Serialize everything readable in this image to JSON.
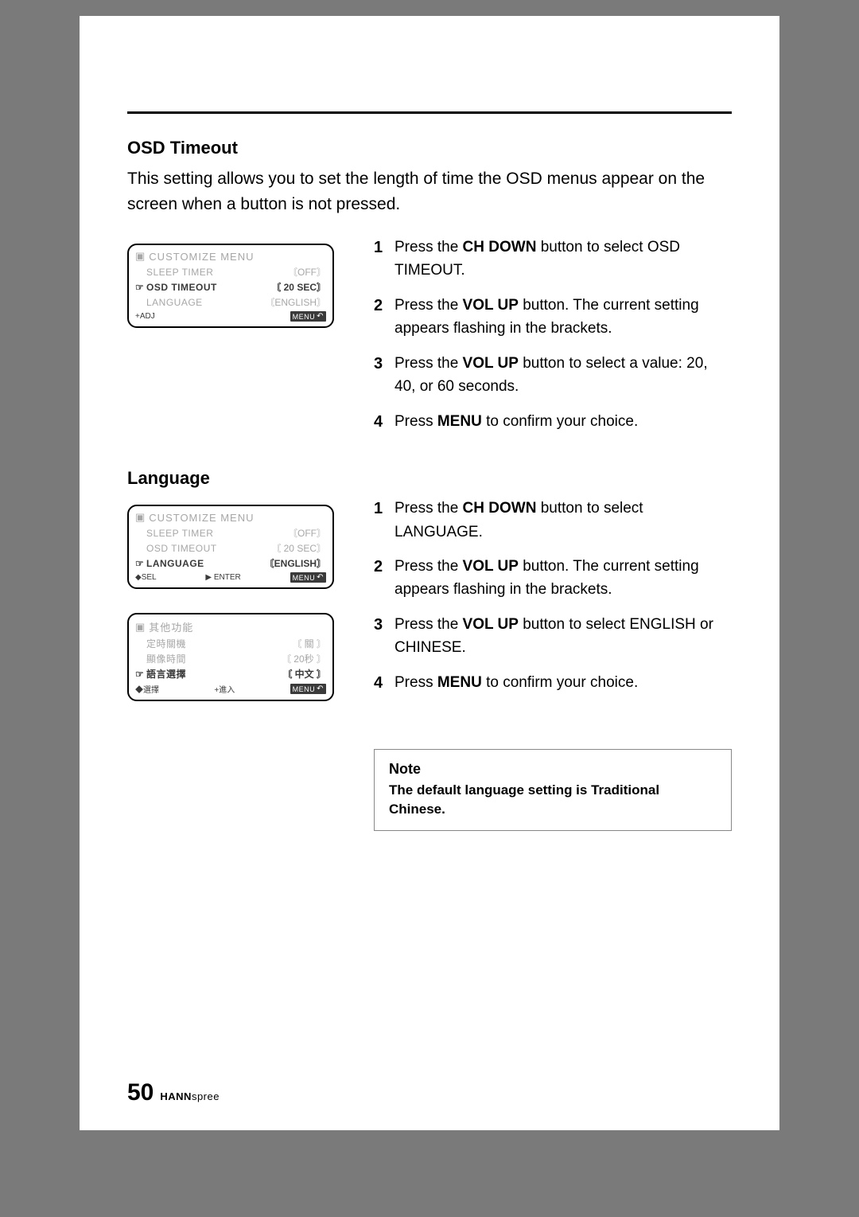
{
  "sections": {
    "osd_timeout": {
      "title": "OSD Timeout",
      "intro": "This setting allows you to set the length of time the OSD menus appear on the screen when a button is not pressed.",
      "steps": [
        {
          "pre": "Press the ",
          "bold": "CH DOWN",
          "post": " button to select OSD TIMEOUT."
        },
        {
          "pre": "Press the ",
          "bold": "VOL UP",
          "post": " button. The current setting appears flashing in the brackets."
        },
        {
          "pre": "Press the ",
          "bold": "VOL UP",
          "post": " button to select a value: 20, 40, or 60 seconds."
        },
        {
          "pre": "Press ",
          "bold": "MENU",
          "post": " to confirm your choice."
        }
      ],
      "panel": {
        "title": "CUSTOMIZE  MENU",
        "rows": [
          {
            "pointer": "",
            "label": "SLEEP TIMER",
            "value": "〘OFF〙",
            "active": false
          },
          {
            "pointer": "☞",
            "label": "OSD TIMEOUT",
            "value": "〘 20  SEC〙",
            "active": true
          },
          {
            "pointer": "",
            "label": "LANGUAGE",
            "value": "〘ENGLISH〙",
            "active": false
          }
        ],
        "footer_left": "+ADJ",
        "footer_mid": "",
        "footer_badge": "MENU"
      }
    },
    "language": {
      "title": "Language",
      "steps": [
        {
          "pre": "Press the ",
          "bold": "CH DOWN",
          "post": " button to select LANGUAGE."
        },
        {
          "pre": "Press the ",
          "bold": "VOL UP",
          "post": " button. The current setting appears flashing in the brackets."
        },
        {
          "pre": "Press the ",
          "bold": "VOL UP",
          "post": " button to select ENGLISH or CHINESE."
        },
        {
          "pre": "Press ",
          "bold": "MENU",
          "post": " to confirm your choice."
        }
      ],
      "panel_en": {
        "title": "CUSTOMIZE  MENU",
        "rows": [
          {
            "pointer": "",
            "label": "SLEEP TIMER",
            "value": "〘OFF〙",
            "active": false
          },
          {
            "pointer": "",
            "label": "OSD TIMEOUT",
            "value": "〘 20  SEC〙",
            "active": false
          },
          {
            "pointer": "☞",
            "label": "LANGUAGE",
            "value": "〘ENGLISH〙",
            "active": true
          }
        ],
        "footer_left": "◆SEL",
        "footer_mid": "▶ ENTER",
        "footer_badge": "MENU"
      },
      "panel_zh": {
        "title": "其他功能",
        "rows": [
          {
            "pointer": "",
            "label": "定時關機",
            "value": "〘 關 〙",
            "active": false
          },
          {
            "pointer": "",
            "label": "顯像時間",
            "value": "〘 20秒 〙",
            "active": false
          },
          {
            "pointer": "☞",
            "label": "語言選擇",
            "value": "〘 中文 〙",
            "active": true
          }
        ],
        "footer_left": "◆選擇",
        "footer_mid": "+進入",
        "footer_badge": "MENU"
      }
    }
  },
  "note": {
    "title": "Note",
    "text": "The default language setting is Traditional Chinese."
  },
  "footer": {
    "page": "50",
    "brand1": "HANN",
    "brand2": "spree"
  },
  "colors": {
    "page_bg": "#ffffff",
    "outer_bg": "#7a7a7a",
    "text": "#000000",
    "osd_grey": "#a7a7a7",
    "osd_dark": "#3a3a3a"
  }
}
